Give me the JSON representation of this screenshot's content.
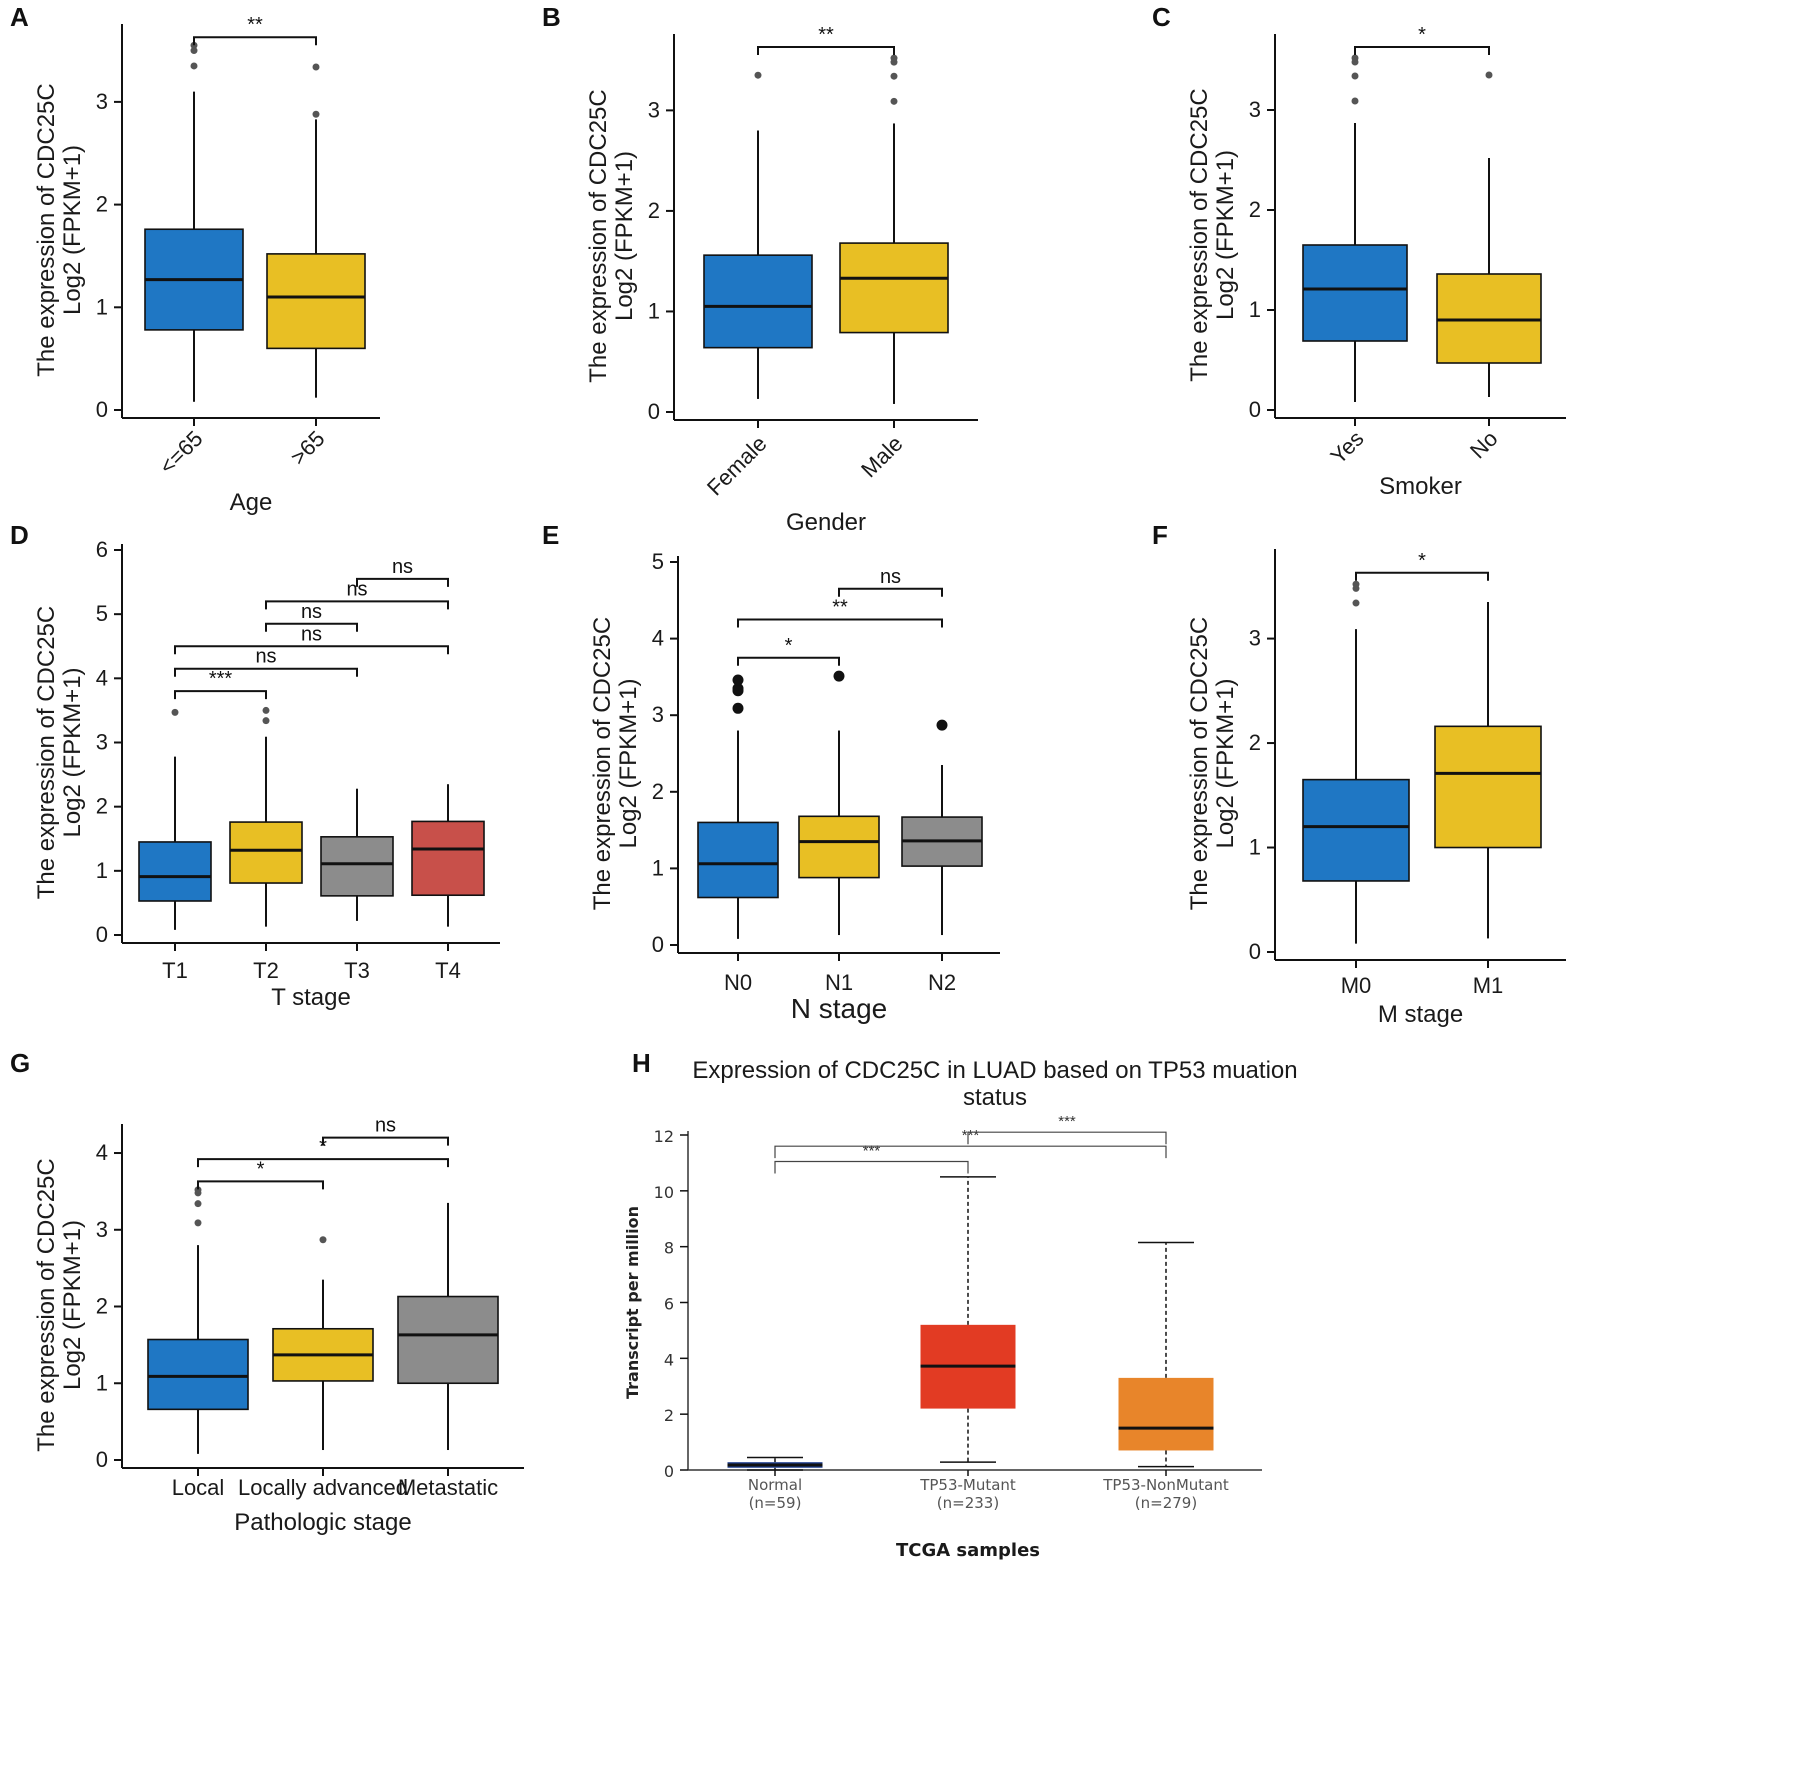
{
  "chart_data": [
    {
      "panel": "A",
      "type": "box",
      "ylabel_line1": "The expression of CDC25C",
      "ylabel_line2": "Log2 (FPKM+1)",
      "xlabel": "Age",
      "ylim": [
        0,
        3.7
      ],
      "yticks": [
        0,
        1,
        2,
        3
      ],
      "groups": [
        {
          "name": "<=65",
          "color": "#1f77c4",
          "min": 0.08,
          "q1": 0.78,
          "median": 1.27,
          "q3": 1.76,
          "max": 3.1,
          "outliers": [
            3.35,
            3.5,
            3.55
          ]
        },
        {
          "name": ">65",
          "color": "#e8bf24",
          "min": 0.12,
          "q1": 0.6,
          "median": 1.1,
          "q3": 1.52,
          "max": 2.83,
          "outliers": [
            2.88,
            3.34
          ]
        }
      ],
      "comparisons": [
        {
          "from": 0,
          "to": 1,
          "label": "**",
          "level": 3.63
        }
      ]
    },
    {
      "panel": "B",
      "type": "box",
      "ylabel_line1": "The expression of CDC25C",
      "ylabel_line2": "Log2 (FPKM+1)",
      "xlabel": "Gender",
      "ylim": [
        0,
        3.7
      ],
      "yticks": [
        0,
        1,
        2,
        3
      ],
      "groups": [
        {
          "name": "Female",
          "color": "#1f77c4",
          "min": 0.13,
          "q1": 0.64,
          "median": 1.05,
          "q3": 1.56,
          "max": 2.8,
          "outliers": [
            3.35
          ]
        },
        {
          "name": "Male",
          "color": "#e8bf24",
          "min": 0.08,
          "q1": 0.79,
          "median": 1.33,
          "q3": 1.68,
          "max": 2.87,
          "outliers": [
            3.09,
            3.34,
            3.48,
            3.52
          ]
        }
      ],
      "comparisons": [
        {
          "from": 0,
          "to": 1,
          "label": "**",
          "level": 3.63
        }
      ]
    },
    {
      "panel": "C",
      "type": "box",
      "ylabel_line1": "The expression of CDC25C",
      "ylabel_line2": "Log2 (FPKM+1)",
      "xlabel": "Smoker",
      "ylim": [
        0,
        3.7
      ],
      "yticks": [
        0,
        1,
        2,
        3
      ],
      "groups": [
        {
          "name": "Yes",
          "color": "#1f77c4",
          "min": 0.08,
          "q1": 0.69,
          "median": 1.21,
          "q3": 1.65,
          "max": 2.87,
          "outliers": [
            3.09,
            3.34,
            3.48,
            3.52
          ]
        },
        {
          "name": "No",
          "color": "#e8bf24",
          "min": 0.13,
          "q1": 0.47,
          "median": 0.9,
          "q3": 1.36,
          "max": 2.52,
          "outliers": [
            3.35
          ]
        }
      ],
      "comparisons": [
        {
          "from": 0,
          "to": 1,
          "label": "*",
          "level": 3.63
        }
      ]
    },
    {
      "panel": "D",
      "type": "box",
      "ylabel_line1": "The expression of CDC25C",
      "ylabel_line2": "Log2 (FPKM+1)",
      "xlabel": "T stage",
      "ylim": [
        0,
        6
      ],
      "yticks": [
        0,
        1,
        2,
        3,
        4,
        5,
        6
      ],
      "groups": [
        {
          "name": "T1",
          "color": "#1f77c4",
          "min": 0.08,
          "q1": 0.53,
          "median": 0.91,
          "q3": 1.45,
          "max": 2.78,
          "outliers": [
            3.47
          ]
        },
        {
          "name": "T2",
          "color": "#e8bf24",
          "min": 0.13,
          "q1": 0.81,
          "median": 1.32,
          "q3": 1.76,
          "max": 3.09,
          "outliers": [
            3.34,
            3.5
          ]
        },
        {
          "name": "T3",
          "color": "#8c8c8c",
          "min": 0.22,
          "q1": 0.61,
          "median": 1.11,
          "q3": 1.53,
          "max": 2.28,
          "outliers": []
        },
        {
          "name": "T4",
          "color": "#c8504a",
          "min": 0.13,
          "q1": 0.62,
          "median": 1.34,
          "q3": 1.77,
          "max": 2.35,
          "outliers": []
        }
      ],
      "comparisons": [
        {
          "from": 0,
          "to": 1,
          "label": "***",
          "level": 3.8
        },
        {
          "from": 0,
          "to": 2,
          "label": "ns",
          "level": 4.15
        },
        {
          "from": 0,
          "to": 3,
          "label": "ns",
          "level": 4.5
        },
        {
          "from": 1,
          "to": 2,
          "label": "ns",
          "level": 4.85
        },
        {
          "from": 1,
          "to": 3,
          "label": "ns",
          "level": 5.2
        },
        {
          "from": 2,
          "to": 3,
          "label": "ns",
          "level": 5.55
        }
      ]
    },
    {
      "panel": "E",
      "type": "box",
      "ylabel_line1": "The expression of CDC25C",
      "ylabel_line2": "Log2 (FPKM+1)",
      "xlabel": "N stage",
      "ylim": [
        0,
        5
      ],
      "yticks": [
        0,
        1,
        2,
        3,
        4,
        5
      ],
      "groups": [
        {
          "name": "N0",
          "color": "#1f77c4",
          "min": 0.08,
          "q1": 0.62,
          "median": 1.06,
          "q3": 1.6,
          "max": 2.8,
          "outliers": [
            3.09,
            3.32,
            3.35,
            3.46
          ]
        },
        {
          "name": "N1",
          "color": "#e8bf24",
          "min": 0.13,
          "q1": 0.88,
          "median": 1.35,
          "q3": 1.68,
          "max": 2.8,
          "outliers": [
            3.51
          ]
        },
        {
          "name": "N2",
          "color": "#8c8c8c",
          "min": 0.13,
          "q1": 1.03,
          "median": 1.36,
          "q3": 1.67,
          "max": 2.35,
          "outliers": [
            2.87
          ]
        }
      ],
      "comparisons": [
        {
          "from": 0,
          "to": 1,
          "label": "*",
          "level": 3.75
        },
        {
          "from": 0,
          "to": 2,
          "label": "**",
          "level": 4.25
        },
        {
          "from": 1,
          "to": 2,
          "label": "ns",
          "level": 4.65
        }
      ]
    },
    {
      "panel": "F",
      "type": "box",
      "ylabel_line1": "The expression of CDC25C",
      "ylabel_line2": "Log2 (FPKM+1)",
      "xlabel": "M stage",
      "ylim": [
        0,
        3.8
      ],
      "yticks": [
        0,
        1,
        2,
        3
      ],
      "groups": [
        {
          "name": "M0",
          "color": "#1f77c4",
          "min": 0.08,
          "q1": 0.68,
          "median": 1.2,
          "q3": 1.65,
          "max": 3.09,
          "outliers": [
            3.34,
            3.48,
            3.52
          ]
        },
        {
          "name": "M1",
          "color": "#e8bf24",
          "min": 0.13,
          "q1": 1.0,
          "median": 1.71,
          "q3": 2.16,
          "max": 3.35,
          "outliers": []
        }
      ],
      "comparisons": [
        {
          "from": 0,
          "to": 1,
          "label": "*",
          "level": 3.63
        }
      ]
    },
    {
      "panel": "G",
      "type": "box",
      "ylabel_line1": "The expression of CDC25C",
      "ylabel_line2": "Log2 (FPKM+1)",
      "xlabel": "Pathologic stage",
      "ylim": [
        0,
        4.3
      ],
      "yticks": [
        0,
        1,
        2,
        3,
        4
      ],
      "groups": [
        {
          "name": "Local",
          "color": "#1f77c4",
          "min": 0.08,
          "q1": 0.66,
          "median": 1.09,
          "q3": 1.57,
          "max": 2.8,
          "outliers": [
            3.09,
            3.34,
            3.48,
            3.52
          ]
        },
        {
          "name": "Locally advanced",
          "color": "#e8bf24",
          "min": 0.13,
          "q1": 1.03,
          "median": 1.37,
          "q3": 1.71,
          "max": 2.35,
          "outliers": [
            2.87
          ]
        },
        {
          "name": "Metastatic",
          "color": "#8c8c8c",
          "min": 0.13,
          "q1": 1.0,
          "median": 1.63,
          "q3": 2.13,
          "max": 3.35,
          "outliers": []
        }
      ],
      "comparisons": [
        {
          "from": 0,
          "to": 1,
          "label": "*",
          "level": 3.63
        },
        {
          "from": 0,
          "to": 2,
          "label": "*",
          "level": 3.92
        },
        {
          "from": 1,
          "to": 2,
          "label": "ns",
          "level": 4.2
        }
      ]
    },
    {
      "panel": "H",
      "type": "box",
      "title_line1": "Expression of CDC25C in LUAD based on TP53 muation",
      "title_line2": "status",
      "ylabel": "Transcript per million",
      "xlabel": "TCGA samples",
      "ylim": [
        0,
        12
      ],
      "yticks": [
        0,
        2,
        4,
        6,
        8,
        10,
        12
      ],
      "groups": [
        {
          "name": "Normal",
          "n": "(n=59)",
          "color": "#1f3f8f",
          "min": 0.0,
          "q1": 0.08,
          "median": 0.18,
          "q3": 0.28,
          "max": 0.45
        },
        {
          "name": "TP53-Mutant",
          "n": "(n=233)",
          "color": "#e23b23",
          "min": 0.28,
          "q1": 2.2,
          "median": 3.72,
          "q3": 5.2,
          "max": 10.5
        },
        {
          "name": "TP53-NonMutant",
          "n": "(n=279)",
          "color": "#e8852a",
          "min": 0.12,
          "q1": 0.7,
          "median": 1.5,
          "q3": 3.3,
          "max": 8.15
        }
      ],
      "comparisons": [
        {
          "from": 0,
          "to": 1,
          "label": "***",
          "level": 11.05
        },
        {
          "from": 0,
          "to": 2,
          "label": "***",
          "level": 11.6
        },
        {
          "from": 1,
          "to": 2,
          "label": "***",
          "level": 12.1
        }
      ]
    }
  ]
}
